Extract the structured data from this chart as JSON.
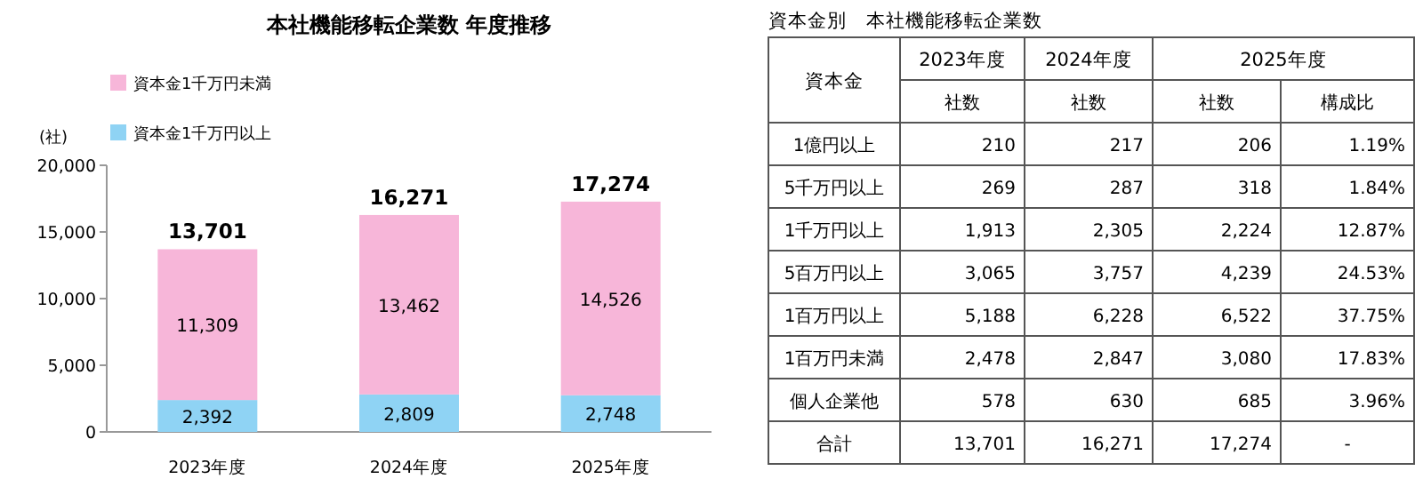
{
  "chart_data": [
    {
      "type": "bar",
      "title": "本社機能移転企業数 年度推移",
      "ylabel": "(社)",
      "categories": [
        "2023年度",
        "2024年度",
        "2025年度"
      ],
      "stacked": true,
      "legend": "top left",
      "series": [
        {
          "name": "資本金1千万円以上",
          "color": "#8fd3f4",
          "values": [
            2392,
            2809,
            2748
          ],
          "value_labels": [
            "2,392",
            "2,809",
            "2,748"
          ]
        },
        {
          "name": "資本金1千万円未満",
          "color": "#f7b6d9",
          "values": [
            11309,
            13462,
            14526
          ],
          "value_labels": [
            "11,309",
            "13,462",
            "14,526"
          ]
        }
      ],
      "totals": [
        "13,701",
        "16,271",
        "17,274"
      ],
      "ylim": [
        0,
        20000
      ],
      "yticks": [
        0,
        {
          "value": 5000,
          "label": "5,000"
        },
        {
          "value": 10000,
          "label": "10,000"
        },
        {
          "value": 15000,
          "label": "15,000"
        },
        {
          "value": 20000,
          "label": "20,000"
        }
      ]
    },
    {
      "type": "other",
      "title": "資本金別　本社機能移転企業数",
      "annotations": [
        "資本金",
        "2023年度",
        "2024年度",
        "2025年度"
      ],
      "categories": [
        "1億円以上",
        "5千万円以上",
        "1千万円以上",
        "5百万円以上",
        "1百万円以上",
        "1百万円未満",
        "個人企業他",
        "合計"
      ],
      "series": [
        {
          "name": "社数",
          "values": [
            210,
            269,
            1913,
            3065,
            5188,
            2478,
            578,
            13701
          ],
          "value_labels": [
            "210",
            "269",
            "1,913",
            "3,065",
            "5,188",
            "2,478",
            "578",
            "13,701"
          ]
        },
        {
          "name": "社数",
          "values": [
            217,
            287,
            2305,
            3757,
            6228,
            2847,
            630,
            16271
          ],
          "value_labels": [
            "217",
            "287",
            "2,305",
            "3,757",
            "6,228",
            "2,847",
            "630",
            "16,271"
          ]
        },
        {
          "name": "社数",
          "values": [
            206,
            318,
            2224,
            4239,
            6522,
            3080,
            685,
            17274
          ],
          "value_labels": [
            "206",
            "318",
            "2,224",
            "4,239",
            "6,522",
            "3,080",
            "685",
            "17,274"
          ]
        },
        {
          "name": "構成比",
          "values": [
            1.19,
            1.84,
            12.87,
            24.53,
            37.75,
            17.83,
            3.96,
            null
          ],
          "value_labels": [
            "1.19%",
            "1.84%",
            "12.87%",
            "24.53%",
            "37.75%",
            "17.83%",
            "3.96%",
            "-"
          ]
        }
      ]
    }
  ]
}
